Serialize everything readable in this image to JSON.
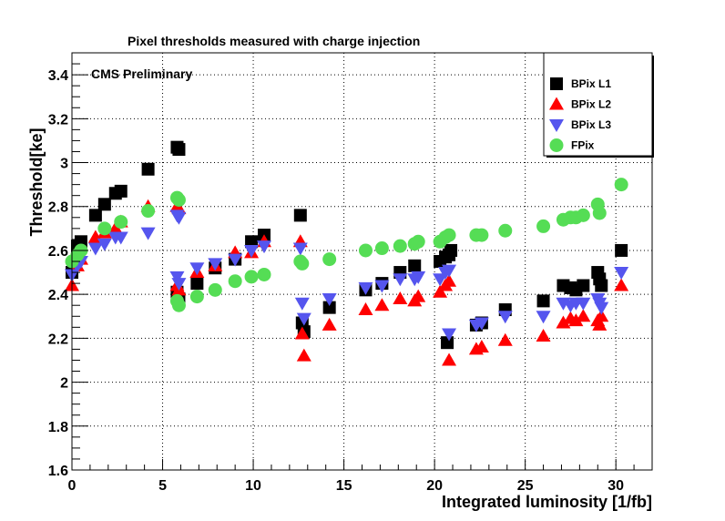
{
  "chart_data": {
    "type": "scatter",
    "title": "Pixel thresholds measured with charge injection",
    "annotation": "CMS Preliminary",
    "xlabel": "Integrated luminosity [1/fb]",
    "ylabel": "Threshold[ke]",
    "xlim": [
      0,
      32
    ],
    "ylim": [
      1.6,
      3.5
    ],
    "x_ticks": [
      0,
      5,
      10,
      15,
      20,
      25,
      30
    ],
    "y_ticks": [
      1.6,
      1.8,
      2,
      2.2,
      2.4,
      2.6,
      2.8,
      3,
      3.2,
      3.4
    ],
    "x_tick_labels": [
      "0",
      "5",
      "10",
      "15",
      "20",
      "25",
      "30"
    ],
    "y_tick_labels": [
      "1.6",
      "1.8",
      "2",
      "2.2",
      "2.4",
      "2.6",
      "2.8",
      "3",
      "3.2",
      "3.4"
    ],
    "grid": true,
    "legend_position": "top-right",
    "series": [
      {
        "name": "BPix L1",
        "marker": "square",
        "color": "#000000",
        "points": [
          [
            0,
            2.5
          ],
          [
            0.3,
            2.62
          ],
          [
            0.5,
            2.64
          ],
          [
            1.3,
            2.76
          ],
          [
            1.8,
            2.81
          ],
          [
            2.4,
            2.86
          ],
          [
            2.7,
            2.87
          ],
          [
            4.2,
            2.97
          ],
          [
            5.8,
            3.07
          ],
          [
            5.9,
            3.06
          ],
          [
            5.8,
            2.41
          ],
          [
            5.9,
            2.38
          ],
          [
            6.9,
            2.45
          ],
          [
            7.9,
            2.52
          ],
          [
            9.0,
            2.56
          ],
          [
            9.9,
            2.64
          ],
          [
            10.6,
            2.67
          ],
          [
            12.6,
            2.76
          ],
          [
            12.7,
            2.27
          ],
          [
            12.8,
            2.23
          ],
          [
            14.2,
            2.34
          ],
          [
            16.2,
            2.42
          ],
          [
            17.1,
            2.45
          ],
          [
            18.1,
            2.5
          ],
          [
            18.9,
            2.53
          ],
          [
            20.3,
            2.55
          ],
          [
            20.6,
            2.57
          ],
          [
            20.8,
            2.58
          ],
          [
            20.9,
            2.6
          ],
          [
            20.7,
            2.18
          ],
          [
            22.3,
            2.26
          ],
          [
            22.6,
            2.27
          ],
          [
            23.9,
            2.33
          ],
          [
            26.0,
            2.37
          ],
          [
            27.1,
            2.44
          ],
          [
            27.5,
            2.43
          ],
          [
            27.8,
            2.42
          ],
          [
            28.2,
            2.44
          ],
          [
            29.0,
            2.5
          ],
          [
            29.1,
            2.47
          ],
          [
            29.2,
            2.44
          ],
          [
            30.3,
            2.6
          ]
        ]
      },
      {
        "name": "BPix L2",
        "marker": "triangle-up",
        "color": "#ff0000",
        "points": [
          [
            0,
            2.44
          ],
          [
            0.3,
            2.53
          ],
          [
            0.5,
            2.56
          ],
          [
            1.3,
            2.66
          ],
          [
            1.8,
            2.68
          ],
          [
            2.4,
            2.7
          ],
          [
            2.7,
            2.73
          ],
          [
            4.2,
            2.8
          ],
          [
            5.8,
            2.8
          ],
          [
            5.9,
            2.79
          ],
          [
            5.8,
            2.44
          ],
          [
            5.9,
            2.42
          ],
          [
            6.9,
            2.5
          ],
          [
            7.9,
            2.53
          ],
          [
            9.0,
            2.59
          ],
          [
            9.9,
            2.59
          ],
          [
            10.6,
            2.64
          ],
          [
            12.6,
            2.64
          ],
          [
            12.7,
            2.22
          ],
          [
            12.8,
            2.12
          ],
          [
            14.2,
            2.26
          ],
          [
            16.2,
            2.33
          ],
          [
            17.1,
            2.35
          ],
          [
            18.1,
            2.38
          ],
          [
            18.9,
            2.37
          ],
          [
            19.1,
            2.39
          ],
          [
            20.3,
            2.41
          ],
          [
            20.6,
            2.44
          ],
          [
            20.8,
            2.46
          ],
          [
            20.8,
            2.1
          ],
          [
            22.3,
            2.15
          ],
          [
            22.6,
            2.16
          ],
          [
            23.9,
            2.19
          ],
          [
            26.0,
            2.21
          ],
          [
            27.1,
            2.27
          ],
          [
            27.5,
            2.29
          ],
          [
            27.8,
            2.28
          ],
          [
            28.2,
            2.3
          ],
          [
            29.0,
            2.28
          ],
          [
            29.1,
            2.26
          ],
          [
            29.2,
            2.3
          ],
          [
            30.3,
            2.44
          ]
        ]
      },
      {
        "name": "BPix L3",
        "marker": "triangle-down",
        "color": "#5555ee",
        "points": [
          [
            0,
            2.49
          ],
          [
            0.3,
            2.53
          ],
          [
            0.5,
            2.55
          ],
          [
            1.3,
            2.61
          ],
          [
            1.8,
            2.63
          ],
          [
            2.4,
            2.66
          ],
          [
            2.7,
            2.66
          ],
          [
            4.2,
            2.68
          ],
          [
            5.8,
            2.76
          ],
          [
            5.9,
            2.75
          ],
          [
            5.8,
            2.48
          ],
          [
            5.9,
            2.45
          ],
          [
            6.9,
            2.52
          ],
          [
            7.9,
            2.54
          ],
          [
            9.0,
            2.56
          ],
          [
            9.9,
            2.6
          ],
          [
            10.6,
            2.62
          ],
          [
            12.6,
            2.61
          ],
          [
            12.7,
            2.36
          ],
          [
            12.8,
            2.29
          ],
          [
            14.2,
            2.38
          ],
          [
            16.2,
            2.43
          ],
          [
            17.1,
            2.44
          ],
          [
            18.1,
            2.47
          ],
          [
            18.9,
            2.47
          ],
          [
            19.1,
            2.48
          ],
          [
            20.3,
            2.47
          ],
          [
            20.6,
            2.5
          ],
          [
            20.8,
            2.51
          ],
          [
            20.8,
            2.22
          ],
          [
            22.3,
            2.26
          ],
          [
            22.6,
            2.27
          ],
          [
            23.9,
            2.3
          ],
          [
            26.0,
            2.3
          ],
          [
            27.1,
            2.36
          ],
          [
            27.5,
            2.35
          ],
          [
            27.8,
            2.36
          ],
          [
            28.2,
            2.36
          ],
          [
            29.0,
            2.38
          ],
          [
            29.1,
            2.36
          ],
          [
            29.2,
            2.34
          ],
          [
            30.3,
            2.5
          ]
        ]
      },
      {
        "name": "FPix",
        "marker": "circle",
        "color": "#55dd55",
        "points": [
          [
            0,
            2.55
          ],
          [
            0.3,
            2.58
          ],
          [
            0.5,
            2.6
          ],
          [
            1.8,
            2.7
          ],
          [
            2.7,
            2.73
          ],
          [
            4.2,
            2.78
          ],
          [
            5.8,
            2.84
          ],
          [
            5.9,
            2.83
          ],
          [
            5.8,
            2.37
          ],
          [
            5.9,
            2.35
          ],
          [
            6.9,
            2.39
          ],
          [
            7.9,
            2.42
          ],
          [
            9.0,
            2.46
          ],
          [
            9.9,
            2.48
          ],
          [
            10.6,
            2.49
          ],
          [
            12.6,
            2.55
          ],
          [
            12.7,
            2.54
          ],
          [
            14.2,
            2.56
          ],
          [
            16.2,
            2.6
          ],
          [
            17.1,
            2.61
          ],
          [
            18.1,
            2.62
          ],
          [
            18.9,
            2.63
          ],
          [
            19.1,
            2.64
          ],
          [
            20.3,
            2.64
          ],
          [
            20.6,
            2.66
          ],
          [
            20.8,
            2.67
          ],
          [
            22.3,
            2.67
          ],
          [
            22.6,
            2.67
          ],
          [
            23.9,
            2.69
          ],
          [
            26.0,
            2.71
          ],
          [
            27.1,
            2.74
          ],
          [
            27.5,
            2.75
          ],
          [
            27.8,
            2.75
          ],
          [
            28.2,
            2.76
          ],
          [
            29.0,
            2.81
          ],
          [
            29.1,
            2.77
          ],
          [
            30.3,
            2.9
          ]
        ]
      }
    ]
  }
}
